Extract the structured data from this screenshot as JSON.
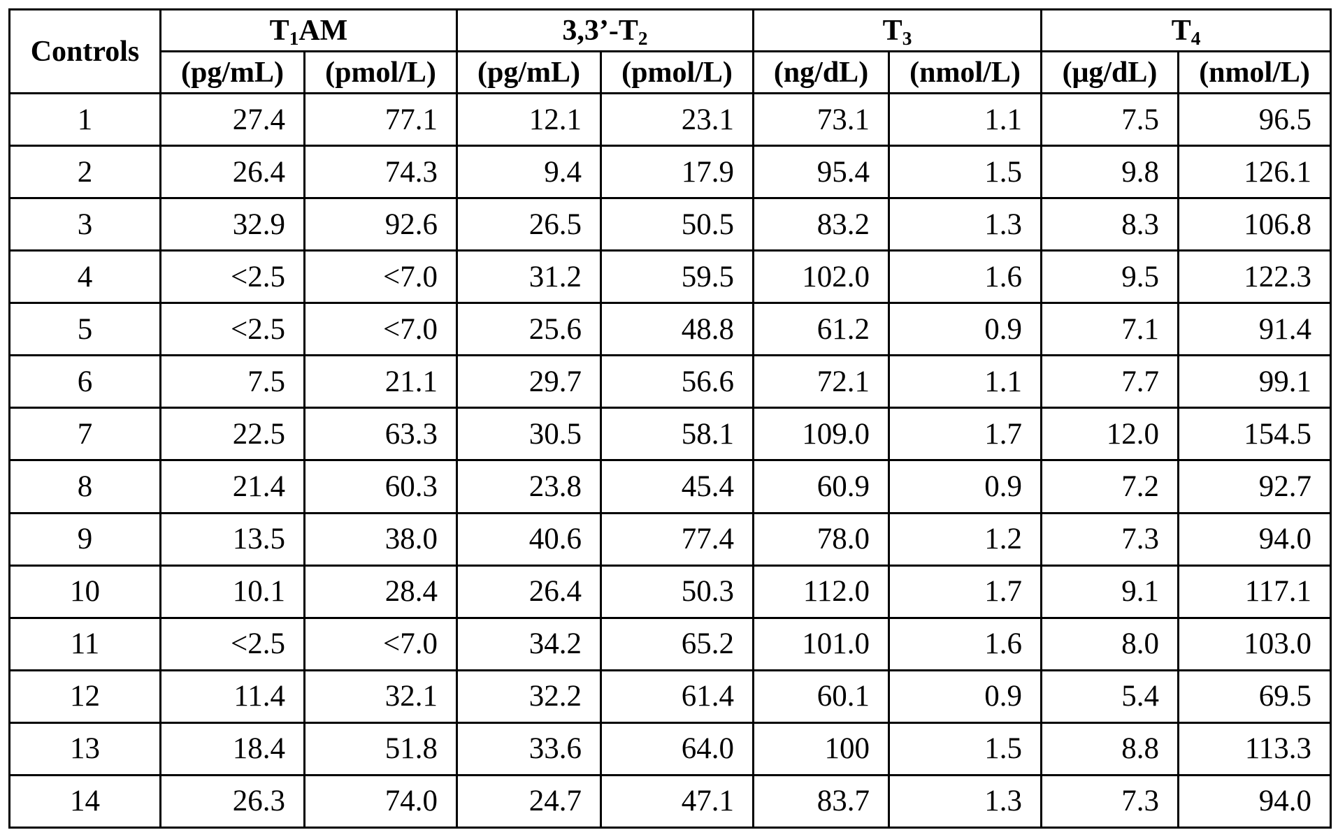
{
  "header": {
    "controls": "Controls",
    "groups": [
      {
        "base": "T",
        "sub": "1",
        "suffix": "AM"
      },
      {
        "base": "3,3’-T",
        "sub": "2",
        "suffix": ""
      },
      {
        "base": "T",
        "sub": "3",
        "suffix": ""
      },
      {
        "base": "T",
        "sub": "4",
        "suffix": ""
      }
    ],
    "units": [
      "(pg/mL)",
      "(pmol/L)",
      "(pg/mL)",
      "(pmol/L)",
      "(ng/dL)",
      "(nmol/L)",
      "(μg/dL)",
      "(nmol/L)"
    ]
  },
  "rows": [
    {
      "control": "1",
      "values": [
        "27.4",
        "77.1",
        "12.1",
        "23.1",
        "73.1",
        "1.1",
        "7.5",
        "96.5"
      ]
    },
    {
      "control": "2",
      "values": [
        "26.4",
        "74.3",
        "9.4",
        "17.9",
        "95.4",
        "1.5",
        "9.8",
        "126.1"
      ]
    },
    {
      "control": "3",
      "values": [
        "32.9",
        "92.6",
        "26.5",
        "50.5",
        "83.2",
        "1.3",
        "8.3",
        "106.8"
      ]
    },
    {
      "control": "4",
      "values": [
        "<2.5",
        "<7.0",
        "31.2",
        "59.5",
        "102.0",
        "1.6",
        "9.5",
        "122.3"
      ]
    },
    {
      "control": "5",
      "values": [
        "<2.5",
        "<7.0",
        "25.6",
        "48.8",
        "61.2",
        "0.9",
        "7.1",
        "91.4"
      ]
    },
    {
      "control": "6",
      "values": [
        "7.5",
        "21.1",
        "29.7",
        "56.6",
        "72.1",
        "1.1",
        "7.7",
        "99.1"
      ]
    },
    {
      "control": "7",
      "values": [
        "22.5",
        "63.3",
        "30.5",
        "58.1",
        "109.0",
        "1.7",
        "12.0",
        "154.5"
      ]
    },
    {
      "control": "8",
      "values": [
        "21.4",
        "60.3",
        "23.8",
        "45.4",
        "60.9",
        "0.9",
        "7.2",
        "92.7"
      ]
    },
    {
      "control": "9",
      "values": [
        "13.5",
        "38.0",
        "40.6",
        "77.4",
        "78.0",
        "1.2",
        "7.3",
        "94.0"
      ]
    },
    {
      "control": "10",
      "values": [
        "10.1",
        "28.4",
        "26.4",
        "50.3",
        "112.0",
        "1.7",
        "9.1",
        "117.1"
      ]
    },
    {
      "control": "11",
      "values": [
        "<2.5",
        "<7.0",
        "34.2",
        "65.2",
        "101.0",
        "1.6",
        "8.0",
        "103.0"
      ]
    },
    {
      "control": "12",
      "values": [
        "11.4",
        "32.1",
        "32.2",
        "61.4",
        "60.1",
        "0.9",
        "5.4",
        "69.5"
      ]
    },
    {
      "control": "13",
      "values": [
        "18.4",
        "51.8",
        "33.6",
        "64.0",
        "100",
        "1.5",
        "8.8",
        "113.3"
      ]
    },
    {
      "control": "14",
      "values": [
        "26.3",
        "74.0",
        "24.7",
        "47.1",
        "83.7",
        "1.3",
        "7.3",
        "94.0"
      ]
    }
  ]
}
